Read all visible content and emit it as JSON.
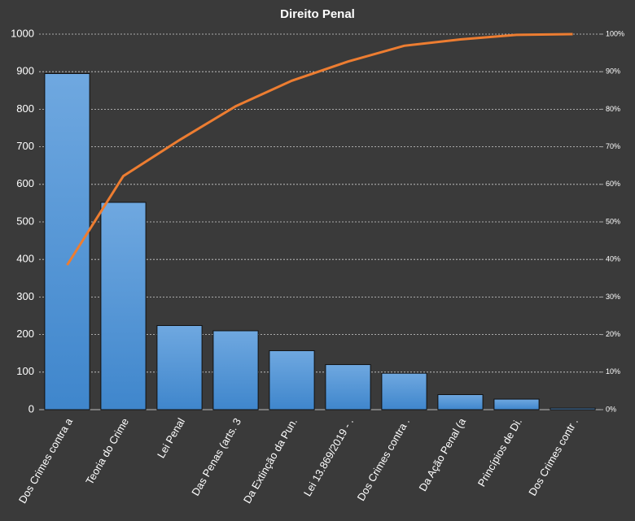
{
  "chart_data": {
    "type": "pareto",
    "title": "Direito  Penal",
    "categories": [
      "Dos Crimes contra a",
      "Teoria do Crime",
      "Lei Penal",
      "Das Penas (arts. 3",
      "Da Extinção da Pun.",
      "Lei 13.869/2019 - .",
      "Dos Crimes contra .",
      "Da Ação Penal (a",
      "Princípios de Di.",
      "Dos Crimes contr ."
    ],
    "series": [
      {
        "values": [
          895,
          552,
          224,
          210,
          157,
          120,
          97,
          40,
          28,
          4
        ],
        "color": "#5b9bd5"
      },
      {
        "values": [
          38.5,
          62.2,
          71.8,
          80.8,
          87.6,
          92.7,
          96.9,
          98.6,
          99.8,
          100
        ],
        "color": "#ed7d31",
        "axis": "y2"
      }
    ],
    "ylim": [
      0,
      1000
    ],
    "yticks": [
      0,
      100,
      200,
      300,
      400,
      500,
      600,
      700,
      800,
      900,
      1000
    ],
    "y2lim": [
      0,
      100
    ],
    "y2ticks": [
      {
        "value": 0,
        "label": "0%"
      },
      {
        "value": 10,
        "label": "10%"
      },
      {
        "value": 20,
        "label": "20%"
      },
      {
        "value": 30,
        "label": "30%"
      },
      {
        "value": 40,
        "label": "40%"
      },
      {
        "value": 50,
        "label": "50%"
      },
      {
        "value": 60,
        "label": "60%"
      },
      {
        "value": 70,
        "label": "70%"
      },
      {
        "value": 80,
        "label": "80%"
      },
      {
        "value": 90,
        "label": "90%"
      },
      {
        "value": 100,
        "label": "100%"
      }
    ],
    "grid": true
  }
}
